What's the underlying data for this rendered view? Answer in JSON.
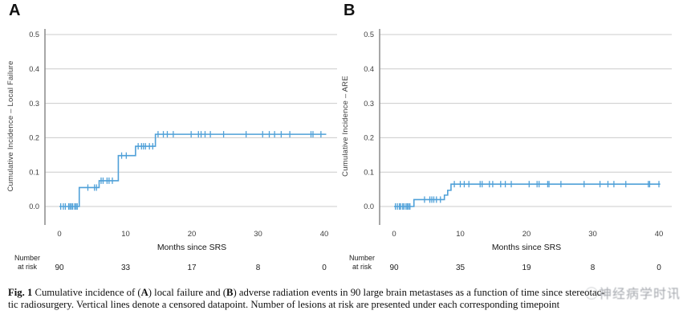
{
  "figure": {
    "watermark": {
      "logo": "◯",
      "text": "神经病学时讯"
    },
    "caption": {
      "lines": [
        [
          {
            "text": "Fig. 1 ",
            "bold": true
          },
          {
            "text": " Cumulative incidence of (",
            "bold": false
          },
          {
            "text": "A",
            "bold": true
          },
          {
            "text": ") local failure and (",
            "bold": false
          },
          {
            "text": "B",
            "bold": true
          },
          {
            "text": ") adverse radiation events in 90 large brain metastases as a function of time since stereotac-",
            "bold": false
          }
        ],
        [
          {
            "text": "tic radiosurgery. Vertical lines denote a censored datapoint. Number of lesions at risk are presented under each corresponding timepoint",
            "bold": false
          }
        ]
      ]
    }
  },
  "chart_data": {
    "type": "line",
    "subtype": "step-function-cumulative-incidence",
    "xlabel": "Months since SRS",
    "xticks": [
      0,
      10,
      20,
      30,
      40
    ],
    "ytick_labels": [
      "0.0",
      "0.1",
      "0.2",
      "0.3",
      "0.4",
      "0.5"
    ],
    "xlim": [
      0,
      41
    ],
    "ylim": [
      0,
      0.5
    ],
    "grid": true,
    "curve_color": "#4fa0d8",
    "gridline_color": "#cccccc",
    "axis_color": "#8a8a8a",
    "at_risk_label": "Number\nat risk",
    "panels": [
      {
        "label": "A",
        "ylabel": "Cumulative Incidence – Local Failure",
        "at_risk": [
          90,
          33,
          17,
          8,
          0
        ],
        "steps": [
          [
            0,
            0
          ],
          [
            3.0,
            0.055
          ],
          [
            6.0,
            0.075
          ],
          [
            8.9,
            0.148
          ],
          [
            11.5,
            0.175
          ],
          [
            14.5,
            0.21
          ],
          [
            40.3,
            0.21
          ]
        ],
        "censors": [
          [
            0.2,
            0
          ],
          [
            0.6,
            0
          ],
          [
            0.9,
            0
          ],
          [
            1.4,
            0
          ],
          [
            1.6,
            0
          ],
          [
            1.8,
            0
          ],
          [
            2.0,
            0
          ],
          [
            2.3,
            0
          ],
          [
            2.5,
            0
          ],
          [
            2.7,
            0
          ],
          [
            4.3,
            0.055
          ],
          [
            5.3,
            0.055
          ],
          [
            5.6,
            0.055
          ],
          [
            6.3,
            0.075
          ],
          [
            6.6,
            0.075
          ],
          [
            7.2,
            0.075
          ],
          [
            7.5,
            0.075
          ],
          [
            8.0,
            0.075
          ],
          [
            9.4,
            0.148
          ],
          [
            10.1,
            0.148
          ],
          [
            11.9,
            0.175
          ],
          [
            12.4,
            0.175
          ],
          [
            12.7,
            0.175
          ],
          [
            13.0,
            0.175
          ],
          [
            13.6,
            0.175
          ],
          [
            14.1,
            0.175
          ],
          [
            14.9,
            0.21
          ],
          [
            15.7,
            0.21
          ],
          [
            16.3,
            0.21
          ],
          [
            17.2,
            0.21
          ],
          [
            19.9,
            0.21
          ],
          [
            21.0,
            0.21
          ],
          [
            21.4,
            0.21
          ],
          [
            22.0,
            0.21
          ],
          [
            22.8,
            0.21
          ],
          [
            24.8,
            0.21
          ],
          [
            28.2,
            0.21
          ],
          [
            30.7,
            0.21
          ],
          [
            31.7,
            0.21
          ],
          [
            32.5,
            0.21
          ],
          [
            33.5,
            0.21
          ],
          [
            34.8,
            0.21
          ],
          [
            38.0,
            0.21
          ],
          [
            38.3,
            0.21
          ],
          [
            39.5,
            0.21
          ]
        ]
      },
      {
        "label": "B",
        "ylabel": "Cumulative Incidence – ARE",
        "at_risk": [
          90,
          35,
          19,
          8,
          0
        ],
        "steps": [
          [
            0,
            0
          ],
          [
            3.0,
            0.02
          ],
          [
            7.6,
            0.033
          ],
          [
            8.1,
            0.047
          ],
          [
            8.6,
            0.065
          ],
          [
            40.2,
            0.065
          ]
        ],
        "censors": [
          [
            0.2,
            0
          ],
          [
            0.5,
            0
          ],
          [
            0.8,
            0
          ],
          [
            1.0,
            0
          ],
          [
            1.3,
            0
          ],
          [
            1.5,
            0
          ],
          [
            1.8,
            0
          ],
          [
            2.0,
            0
          ],
          [
            2.2,
            0
          ],
          [
            2.4,
            0
          ],
          [
            4.6,
            0.02
          ],
          [
            5.4,
            0.02
          ],
          [
            5.7,
            0.02
          ],
          [
            6.0,
            0.02
          ],
          [
            6.4,
            0.02
          ],
          [
            7.0,
            0.02
          ],
          [
            9.1,
            0.065
          ],
          [
            10.0,
            0.065
          ],
          [
            10.6,
            0.065
          ],
          [
            11.3,
            0.065
          ],
          [
            13.0,
            0.065
          ],
          [
            13.3,
            0.065
          ],
          [
            14.4,
            0.065
          ],
          [
            14.9,
            0.065
          ],
          [
            16.1,
            0.065
          ],
          [
            16.8,
            0.065
          ],
          [
            17.7,
            0.065
          ],
          [
            20.4,
            0.065
          ],
          [
            21.6,
            0.065
          ],
          [
            21.9,
            0.065
          ],
          [
            23.2,
            0.065
          ],
          [
            23.4,
            0.065
          ],
          [
            25.2,
            0.065
          ],
          [
            28.7,
            0.065
          ],
          [
            31.1,
            0.065
          ],
          [
            32.3,
            0.065
          ],
          [
            33.2,
            0.065
          ],
          [
            35.0,
            0.065
          ],
          [
            38.4,
            0.065
          ],
          [
            38.6,
            0.065
          ],
          [
            40.0,
            0.065
          ]
        ]
      }
    ]
  }
}
